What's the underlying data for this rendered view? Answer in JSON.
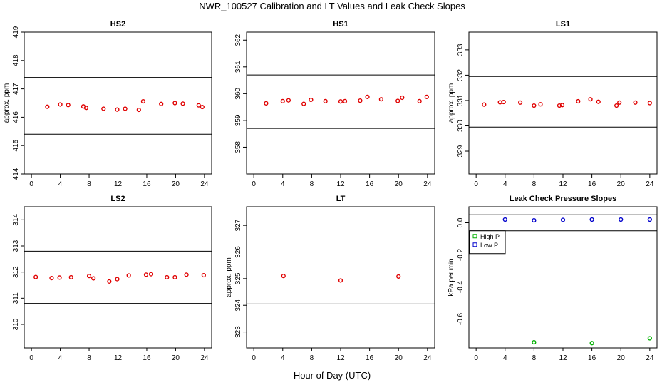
{
  "figure": {
    "title": "NWR_100527  Calibration and LT Values and Leak Check Slopes",
    "xlabel": "Hour of Day (UTC)"
  },
  "chart_data": [
    {
      "type": "scatter",
      "title": "HS2",
      "ylabel": "approx. ppm",
      "xlim": [
        -1,
        25
      ],
      "ylim": [
        414,
        419
      ],
      "xticks": [
        0,
        4,
        8,
        12,
        16,
        20,
        24
      ],
      "yticks": [
        414,
        415,
        416,
        417,
        418,
        419
      ],
      "ref_lines": [
        415.4,
        417.4
      ],
      "series": [
        {
          "color": "#e00000",
          "x": [
            2.2,
            4.0,
            5.1,
            7.2,
            7.6,
            10.0,
            11.9,
            13.0,
            14.9,
            15.5,
            18.0,
            19.9,
            21.0,
            23.2,
            23.7
          ],
          "y": [
            416.37,
            416.45,
            416.43,
            416.38,
            416.33,
            416.3,
            416.27,
            416.3,
            416.26,
            416.56,
            416.47,
            416.5,
            416.48,
            416.42,
            416.36
          ]
        }
      ]
    },
    {
      "type": "scatter",
      "title": "HS1",
      "ylabel": "",
      "xlim": [
        -1,
        25
      ],
      "ylim": [
        357,
        362.3
      ],
      "xticks": [
        0,
        4,
        8,
        12,
        16,
        20,
        24
      ],
      "yticks": [
        358,
        359,
        360,
        361,
        362
      ],
      "ref_lines": [
        358.7,
        360.7
      ],
      "series": [
        {
          "color": "#e00000",
          "x": [
            1.7,
            4.0,
            4.8,
            6.9,
            7.9,
            9.9,
            12.0,
            12.6,
            14.7,
            15.7,
            17.6,
            19.9,
            20.5,
            22.9,
            23.9
          ],
          "y": [
            359.64,
            359.72,
            359.75,
            359.62,
            359.77,
            359.72,
            359.71,
            359.72,
            359.74,
            359.88,
            359.79,
            359.73,
            359.85,
            359.72,
            359.88
          ]
        }
      ]
    },
    {
      "type": "scatter",
      "title": "LS1",
      "ylabel": "approx. ppm",
      "xlim": [
        -1,
        25
      ],
      "ylim": [
        328.1,
        333.7
      ],
      "xticks": [
        0,
        4,
        8,
        12,
        16,
        20,
        24
      ],
      "yticks": [
        329,
        330,
        331,
        332,
        333
      ],
      "ref_lines": [
        329.95,
        331.95
      ],
      "series": [
        {
          "color": "#e00000",
          "x": [
            1.1,
            3.3,
            3.8,
            6.1,
            8.0,
            8.9,
            11.5,
            11.9,
            14.1,
            15.8,
            16.9,
            19.4,
            19.8,
            22.0,
            24.0
          ],
          "y": [
            330.84,
            330.93,
            330.94,
            330.92,
            330.8,
            330.85,
            330.8,
            330.82,
            330.97,
            331.05,
            330.95,
            330.8,
            330.92,
            330.92,
            330.9
          ]
        }
      ]
    },
    {
      "type": "scatter",
      "title": "LS2",
      "ylabel": "",
      "xlim": [
        -1,
        25
      ],
      "ylim": [
        309.1,
        314.5
      ],
      "xticks": [
        0,
        4,
        8,
        12,
        16,
        20,
        24
      ],
      "yticks": [
        310,
        311,
        312,
        313,
        314
      ],
      "ref_lines": [
        310.8,
        312.8
      ],
      "series": [
        {
          "color": "#e00000",
          "x": [
            0.6,
            2.8,
            3.9,
            5.5,
            8.0,
            8.6,
            10.8,
            11.9,
            13.5,
            15.9,
            16.6,
            18.8,
            19.9,
            21.5,
            23.9
          ],
          "y": [
            311.81,
            311.77,
            311.79,
            311.8,
            311.85,
            311.76,
            311.64,
            311.73,
            311.87,
            311.9,
            311.92,
            311.8,
            311.8,
            311.9,
            311.88
          ]
        }
      ]
    },
    {
      "type": "scatter",
      "title": "LT",
      "ylabel": "approx. ppm",
      "xlim": [
        -1,
        25
      ],
      "ylim": [
        322.4,
        327.7
      ],
      "xticks": [
        0,
        4,
        8,
        12,
        16,
        20,
        24
      ],
      "yticks": [
        323,
        324,
        325,
        326,
        327
      ],
      "ref_lines": [
        324.05,
        326.0
      ],
      "series": [
        {
          "color": "#e00000",
          "x": [
            4.1,
            12.0,
            20.0
          ],
          "y": [
            325.1,
            324.93,
            325.08
          ]
        }
      ]
    },
    {
      "type": "scatter",
      "title": "Leak Check Pressure Slopes",
      "ylabel": "kPa per min",
      "xlim": [
        -1,
        25
      ],
      "ylim": [
        -0.78,
        0.1
      ],
      "xticks": [
        0,
        4,
        8,
        12,
        16,
        20,
        24
      ],
      "yticks": [
        0.0,
        -0.2,
        -0.4,
        -0.6
      ],
      "ytick_labels": [
        "0.0",
        "-0.2",
        "-0.4",
        "-0.6"
      ],
      "ref_lines": [
        0.05,
        -0.05
      ],
      "legend": {
        "position": "top-left"
      },
      "series": [
        {
          "name": "High P",
          "color": "#00b000",
          "x": [
            8.0,
            16.0,
            24.0
          ],
          "y": [
            -0.745,
            -0.75,
            -0.72
          ]
        },
        {
          "name": "Low P",
          "color": "#0000cc",
          "x": [
            4.0,
            8.0,
            12.0,
            16.0,
            20.0,
            24.0
          ],
          "y": [
            0.02,
            0.015,
            0.018,
            0.02,
            0.02,
            0.02
          ]
        }
      ]
    }
  ]
}
